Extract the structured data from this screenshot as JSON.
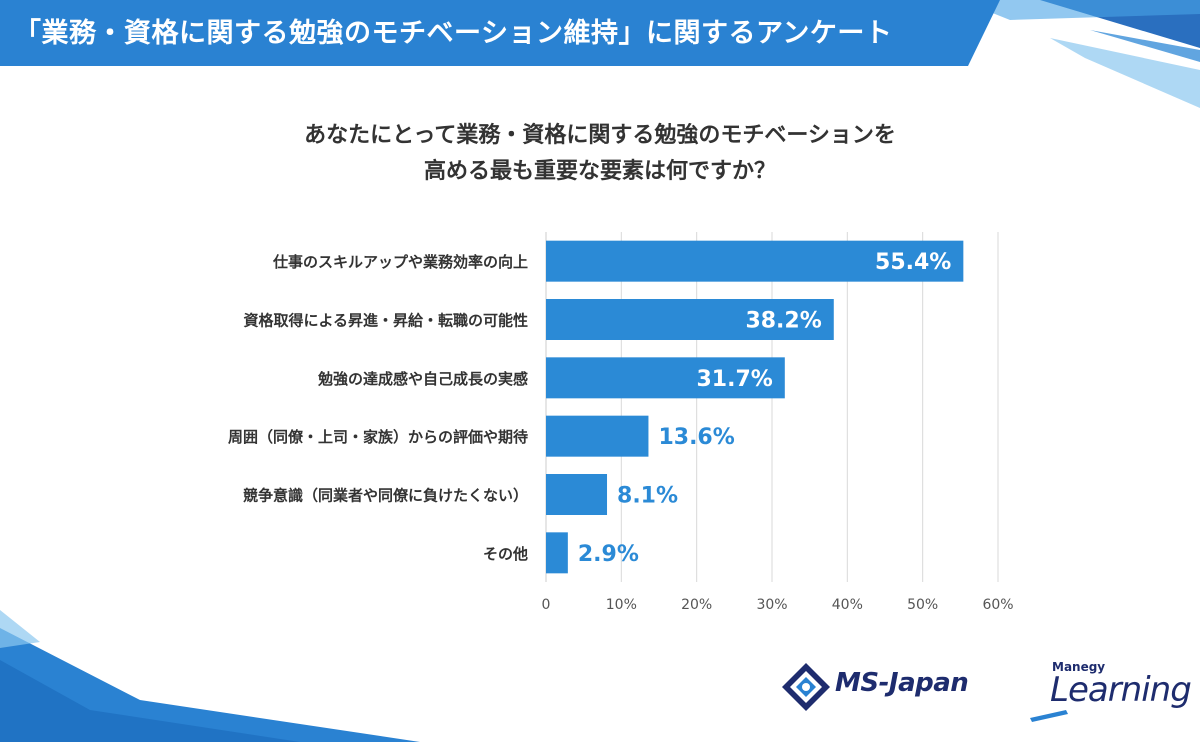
{
  "header": {
    "title": "「業務・資格に関する勉強のモチベーション維持」に関するアンケート"
  },
  "question": {
    "line1": "あなたにとって業務・資格に関する勉強のモチベーションを",
    "line2": "高める最も重要な要素は何ですか？"
  },
  "colors": {
    "bar": "#2b8ad6",
    "header_blue": "#2a82d2",
    "label_outside": "#2b8ad6",
    "label_inside": "#ffffff",
    "brand_navy": "#1e2c6e"
  },
  "chart_data": {
    "type": "bar",
    "orientation": "horizontal",
    "title": "あなたにとって業務・資格に関する勉強のモチベーションを高める最も重要な要素は何ですか？",
    "categories": [
      "仕事のスキルアップや業務効率の向上",
      "資格取得による昇進・昇給・転職の可能性",
      "勉強の達成感や自己成長の実感",
      "周囲（同僚・上司・家族）からの評価や期待",
      "競争意識（同業者や同僚に負けたくない）",
      "その他"
    ],
    "values": [
      55.4,
      38.2,
      31.7,
      13.6,
      8.1,
      2.9
    ],
    "value_labels": [
      "55.4%",
      "38.2%",
      "31.7%",
      "13.6%",
      "8.1%",
      "2.9%"
    ],
    "xlim": [
      0,
      60
    ],
    "xticks": [
      0,
      10,
      20,
      30,
      40,
      50,
      60
    ],
    "xtick_labels": [
      "0",
      "10%",
      "20%",
      "30%",
      "40%",
      "50%",
      "60%"
    ],
    "grid": true,
    "legend": "none"
  },
  "logos": {
    "ms_japan": "MS-Japan",
    "manegy": "Manegy",
    "learning": "Learning"
  }
}
